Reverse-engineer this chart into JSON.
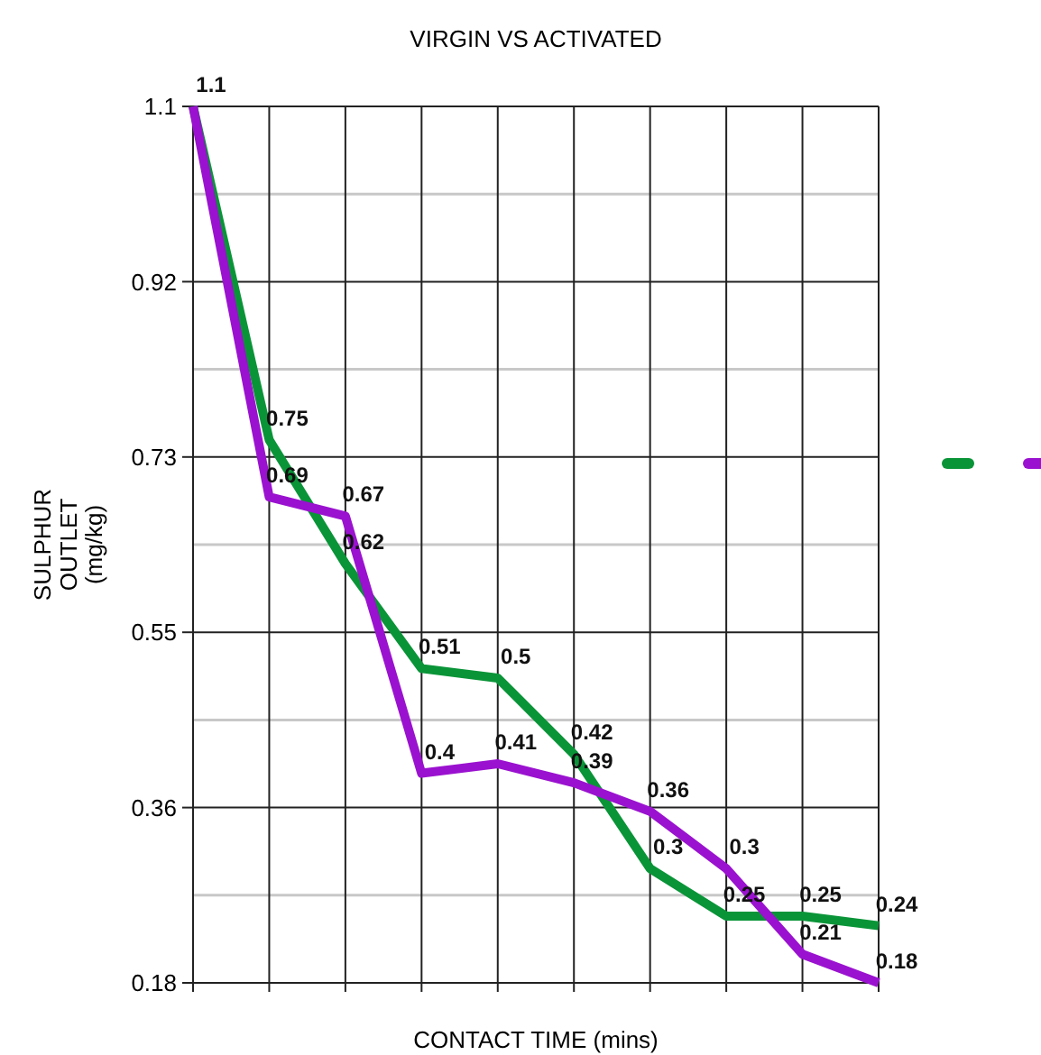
{
  "chart_data": {
    "type": "line",
    "title": "VIRGIN VS ACTIVATED",
    "xlabel": "CONTACT TIME (mins)",
    "ylabel": "SULPHUR OUTLET (mg/kg)",
    "categories": [
      null,
      null,
      null,
      null,
      null,
      null,
      null,
      null,
      null,
      null
    ],
    "ylim": [
      0.18,
      1.1
    ],
    "yticks": [
      {
        "value": 0.18,
        "label": "0.18"
      },
      {
        "value": 0.364,
        "label": "0.36"
      },
      {
        "value": 0.548,
        "label": "0.55"
      },
      {
        "value": 0.732,
        "label": "0.73"
      },
      {
        "value": 0.916,
        "label": "0.92"
      },
      {
        "value": 1.1,
        "label": "1.1"
      }
    ],
    "series": [
      {
        "color": "#0a9438",
        "values": [
          1.1,
          0.75,
          0.62,
          0.51,
          0.5,
          0.42,
          0.3,
          0.25,
          0.25,
          0.24
        ],
        "value_labels": [
          "1.1",
          "0.75",
          "0.62",
          "0.51",
          "0.5",
          "0.42",
          "0.3",
          "0.25",
          "0.25",
          "0.24"
        ]
      },
      {
        "color": "#9a12cf",
        "values": [
          1.1,
          0.69,
          0.67,
          0.4,
          0.41,
          0.39,
          0.36,
          0.3,
          0.21,
          0.18
        ],
        "value_labels": [
          null,
          "0.69",
          "0.67",
          "0.4",
          "0.41",
          "0.39",
          "0.36",
          "0.3",
          "0.21",
          "0.18"
        ]
      }
    ],
    "grid": true,
    "line_style": "solid",
    "marker": "none"
  }
}
